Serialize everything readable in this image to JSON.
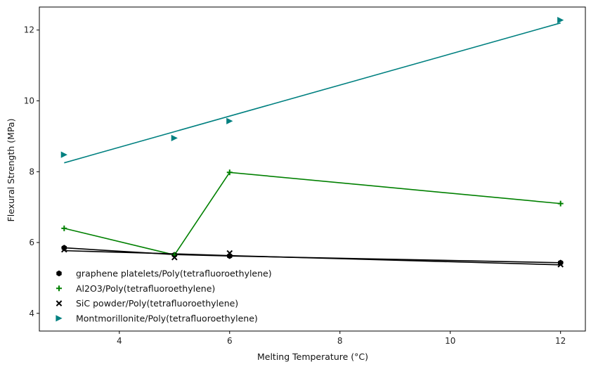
{
  "chart_data": {
    "type": "scatter",
    "xlabel": "Melting Temperature (°C)",
    "ylabel": "Flexural Strength (MPa)",
    "xlim": [
      2.55,
      12.45
    ],
    "ylim": [
      3.5,
      12.65
    ],
    "xticks": [
      4,
      6,
      8,
      10,
      12
    ],
    "yticks": [
      4,
      6,
      8,
      10,
      12
    ],
    "grid": false,
    "legend_position": "lower-left",
    "series": [
      {
        "name": "graphene platelets/Poly(tetrafluoroethylene)",
        "marker": "hexagon",
        "color": "#000000",
        "x": [
          3,
          5,
          6,
          12
        ],
        "points": [
          5.85,
          5.65,
          5.62,
          5.43
        ],
        "line": [
          5.85,
          5.66,
          5.62,
          5.43
        ]
      },
      {
        "name": "Al2O3/Poly(tetrafluoroethylene)",
        "marker": "plus",
        "color": "#008000",
        "x": [
          3,
          5,
          6,
          12
        ],
        "points": [
          6.4,
          5.65,
          7.98,
          7.1
        ],
        "line": [
          6.4,
          5.65,
          7.98,
          7.1
        ]
      },
      {
        "name": "SiC powder/Poly(tetrafluoroethylene)",
        "marker": "x",
        "color": "#000000",
        "x": [
          3,
          5,
          6,
          12
        ],
        "points": [
          5.8,
          5.58,
          5.7,
          5.38
        ],
        "line": [
          5.77,
          5.68,
          5.63,
          5.37
        ]
      },
      {
        "name": "Montmorillonite/Poly(tetrafluoroethylene)",
        "marker": "triangle-right",
        "color": "#008080",
        "x": [
          3,
          5,
          6,
          12
        ],
        "points": [
          8.48,
          8.95,
          9.43,
          12.28
        ],
        "line": [
          8.25,
          9.13,
          9.57,
          12.2
        ]
      }
    ]
  }
}
